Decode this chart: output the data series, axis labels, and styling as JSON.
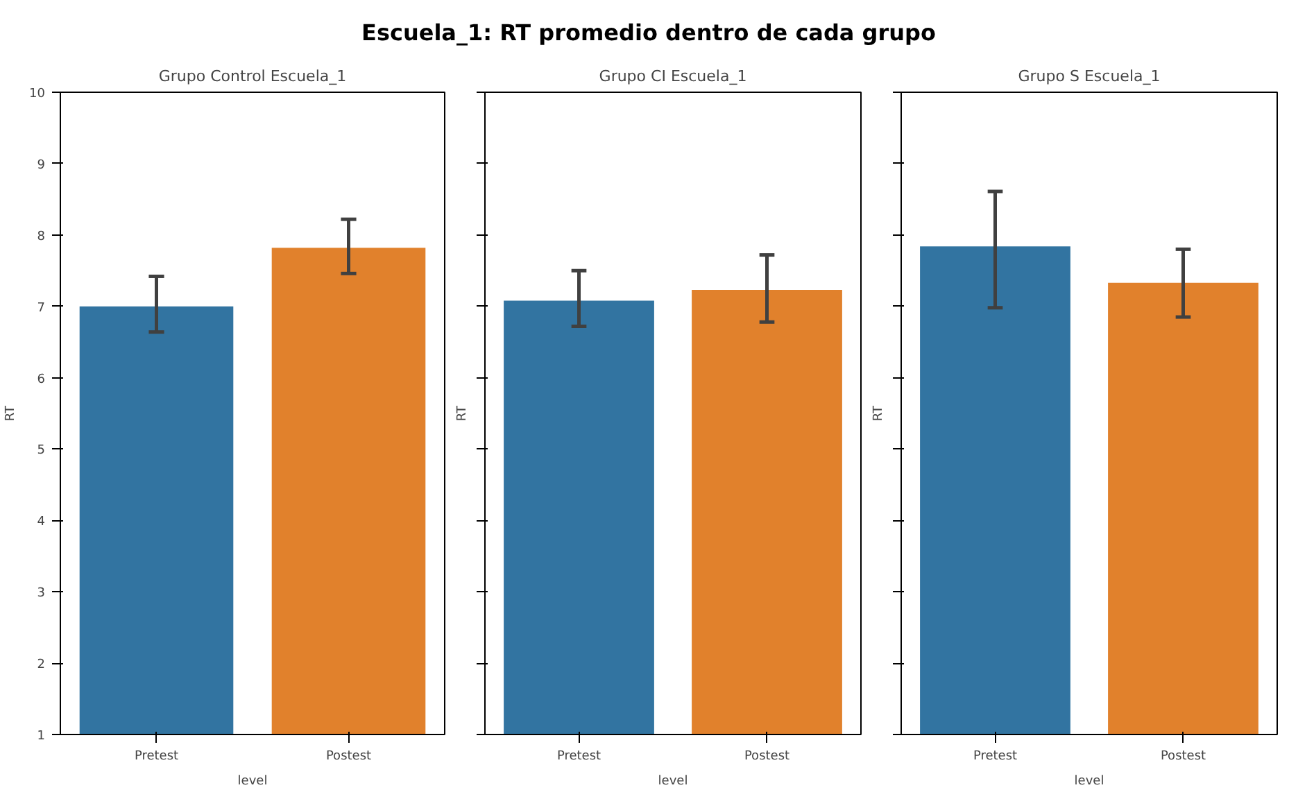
{
  "chart_data": [
    {
      "type": "bar",
      "title": "Grupo Control Escuela_1",
      "annotations": [
        "Escuela_1: RT promedio dentro de cada grupo"
      ],
      "xlabel": "level",
      "ylabel": "RT",
      "categories": [
        "Pretest",
        "Postest"
      ],
      "values": [
        7.0,
        7.82
      ],
      "colors": [
        "#3274a1",
        "#e1812c"
      ],
      "errors": [
        [
          6.64,
          7.42
        ],
        [
          7.46,
          8.22
        ]
      ],
      "ylim": [
        1,
        10
      ],
      "yticks": [
        1,
        2,
        3,
        4,
        5,
        6,
        7,
        8,
        9,
        10
      ]
    },
    {
      "type": "bar",
      "title": "Grupo CI Escuela_1",
      "xlabel": "level",
      "ylabel": "RT",
      "categories": [
        "Pretest",
        "Postest"
      ],
      "values": [
        7.08,
        7.23
      ],
      "colors": [
        "#3274a1",
        "#e1812c"
      ],
      "errors": [
        [
          6.72,
          7.5
        ],
        [
          6.78,
          7.72
        ]
      ],
      "ylim": [
        1,
        10
      ],
      "yticks": [
        1,
        2,
        3,
        4,
        5,
        6,
        7,
        8,
        9,
        10
      ],
      "tick_labels": "x"
    },
    {
      "type": "bar",
      "title": "Grupo S Escuela_1",
      "xlabel": "level",
      "ylabel": "RT",
      "categories": [
        "Pretest",
        "Postest"
      ],
      "values": [
        7.84,
        7.33
      ],
      "colors": [
        "#3274a1",
        "#e1812c"
      ],
      "errors": [
        [
          6.98,
          8.61
        ],
        [
          6.85,
          7.8
        ]
      ],
      "ylim": [
        1,
        10
      ],
      "yticks": [
        1,
        2,
        3,
        4,
        5,
        6,
        7,
        8,
        9,
        10
      ],
      "tick_labels": "x"
    }
  ]
}
